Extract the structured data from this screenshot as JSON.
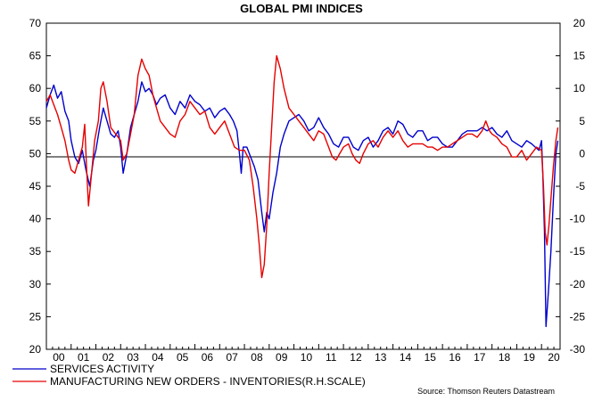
{
  "chart_data": {
    "type": "line",
    "title": "GLOBAL PMI INDICES",
    "source": "Source: Thomson Reuters Datastream",
    "left_axis": {
      "ylim": [
        20,
        70
      ],
      "ticks": [
        "70",
        "65",
        "60",
        "55",
        "50",
        "45",
        "40",
        "35",
        "30",
        "25",
        "20"
      ]
    },
    "right_axis": {
      "ylim": [
        -30,
        20
      ],
      "ticks": [
        "20",
        "15",
        "10",
        "5",
        "0",
        "-5",
        "-10",
        "-15",
        "-20",
        "-25",
        "-30"
      ]
    },
    "x_axis": {
      "year_labels": [
        "00",
        "01",
        "02",
        "03",
        "04",
        "05",
        "06",
        "07",
        "08",
        "09",
        "10",
        "11",
        "12",
        "13",
        "14",
        "15",
        "16",
        "17",
        "18",
        "19",
        "20"
      ],
      "start_year": 2000,
      "end_year": 2020.75
    },
    "reference_line_left": 49.5,
    "series": [
      {
        "name": "SERVICES ACTIVITY",
        "axis": "left",
        "color": "#0000cc",
        "points": [
          [
            2000.0,
            57.0
          ],
          [
            2000.15,
            59.0
          ],
          [
            2000.3,
            60.5
          ],
          [
            2000.45,
            58.5
          ],
          [
            2000.6,
            59.5
          ],
          [
            2000.75,
            56.5
          ],
          [
            2000.9,
            55.0
          ],
          [
            2001.0,
            52.0
          ],
          [
            2001.15,
            49.5
          ],
          [
            2001.3,
            48.5
          ],
          [
            2001.45,
            50.5
          ],
          [
            2001.6,
            47.5
          ],
          [
            2001.75,
            45.0
          ],
          [
            2001.9,
            49.0
          ],
          [
            2002.0,
            50.5
          ],
          [
            2002.15,
            54.0
          ],
          [
            2002.3,
            57.0
          ],
          [
            2002.45,
            55.0
          ],
          [
            2002.6,
            53.0
          ],
          [
            2002.75,
            52.5
          ],
          [
            2002.9,
            53.5
          ],
          [
            2003.0,
            51.0
          ],
          [
            2003.1,
            47.0
          ],
          [
            2003.25,
            50.0
          ],
          [
            2003.4,
            54.0
          ],
          [
            2003.55,
            56.0
          ],
          [
            2003.7,
            58.0
          ],
          [
            2003.85,
            61.0
          ],
          [
            2004.0,
            59.5
          ],
          [
            2004.15,
            60.0
          ],
          [
            2004.3,
            59.0
          ],
          [
            2004.45,
            57.5
          ],
          [
            2004.6,
            58.5
          ],
          [
            2004.8,
            59.0
          ],
          [
            2005.0,
            57.0
          ],
          [
            2005.2,
            56.0
          ],
          [
            2005.4,
            58.0
          ],
          [
            2005.6,
            57.0
          ],
          [
            2005.8,
            59.0
          ],
          [
            2006.0,
            58.0
          ],
          [
            2006.2,
            57.5
          ],
          [
            2006.4,
            56.5
          ],
          [
            2006.6,
            57.0
          ],
          [
            2006.8,
            55.5
          ],
          [
            2007.0,
            56.5
          ],
          [
            2007.2,
            57.0
          ],
          [
            2007.4,
            56.0
          ],
          [
            2007.55,
            55.0
          ],
          [
            2007.7,
            53.5
          ],
          [
            2007.8,
            50.0
          ],
          [
            2007.87,
            47.0
          ],
          [
            2007.95,
            51.0
          ],
          [
            2008.1,
            51.0
          ],
          [
            2008.25,
            49.5
          ],
          [
            2008.4,
            48.0
          ],
          [
            2008.55,
            46.0
          ],
          [
            2008.7,
            41.0
          ],
          [
            2008.8,
            38.0
          ],
          [
            2008.9,
            41.0
          ],
          [
            2009.0,
            40.0
          ],
          [
            2009.15,
            44.0
          ],
          [
            2009.3,
            47.0
          ],
          [
            2009.45,
            51.0
          ],
          [
            2009.6,
            53.0
          ],
          [
            2009.8,
            55.0
          ],
          [
            2010.0,
            55.5
          ],
          [
            2010.2,
            56.0
          ],
          [
            2010.4,
            55.0
          ],
          [
            2010.6,
            53.5
          ],
          [
            2010.8,
            54.0
          ],
          [
            2011.0,
            55.5
          ],
          [
            2011.2,
            54.0
          ],
          [
            2011.4,
            53.0
          ],
          [
            2011.6,
            51.5
          ],
          [
            2011.8,
            51.0
          ],
          [
            2012.0,
            52.5
          ],
          [
            2012.2,
            52.5
          ],
          [
            2012.4,
            51.0
          ],
          [
            2012.6,
            50.5
          ],
          [
            2012.8,
            52.0
          ],
          [
            2013.0,
            52.5
          ],
          [
            2013.2,
            51.0
          ],
          [
            2013.4,
            52.0
          ],
          [
            2013.6,
            53.5
          ],
          [
            2013.8,
            54.0
          ],
          [
            2014.0,
            53.0
          ],
          [
            2014.2,
            55.0
          ],
          [
            2014.4,
            54.5
          ],
          [
            2014.6,
            53.0
          ],
          [
            2014.8,
            52.5
          ],
          [
            2015.0,
            53.5
          ],
          [
            2015.2,
            53.5
          ],
          [
            2015.4,
            52.0
          ],
          [
            2015.6,
            52.5
          ],
          [
            2015.8,
            52.5
          ],
          [
            2016.0,
            51.5
          ],
          [
            2016.2,
            51.0
          ],
          [
            2016.4,
            51.0
          ],
          [
            2016.6,
            52.0
          ],
          [
            2016.8,
            53.0
          ],
          [
            2017.0,
            53.5
          ],
          [
            2017.2,
            53.5
          ],
          [
            2017.4,
            53.5
          ],
          [
            2017.6,
            54.0
          ],
          [
            2017.8,
            53.5
          ],
          [
            2018.0,
            54.0
          ],
          [
            2018.2,
            53.0
          ],
          [
            2018.4,
            52.5
          ],
          [
            2018.6,
            53.5
          ],
          [
            2018.8,
            52.0
          ],
          [
            2019.0,
            51.5
          ],
          [
            2019.2,
            51.0
          ],
          [
            2019.4,
            52.0
          ],
          [
            2019.6,
            51.5
          ],
          [
            2019.75,
            51.0
          ],
          [
            2019.9,
            50.5
          ],
          [
            2020.0,
            52.0
          ],
          [
            2020.05,
            47.0
          ],
          [
            2020.12,
            38.0
          ],
          [
            2020.18,
            23.5
          ],
          [
            2020.28,
            29.0
          ],
          [
            2020.38,
            35.0
          ],
          [
            2020.48,
            43.0
          ],
          [
            2020.58,
            50.0
          ],
          [
            2020.66,
            52.0
          ]
        ]
      },
      {
        "name": "MANUFACTURING NEW ORDERS - INVENTORIES(R.H.SCALE)",
        "axis": "right",
        "color": "#e60000",
        "points": [
          [
            2000.0,
            8.0
          ],
          [
            2000.15,
            9.0
          ],
          [
            2000.3,
            7.5
          ],
          [
            2000.45,
            6.0
          ],
          [
            2000.6,
            4.0
          ],
          [
            2000.75,
            2.0
          ],
          [
            2000.9,
            -1.0
          ],
          [
            2001.0,
            -2.5
          ],
          [
            2001.15,
            -3.0
          ],
          [
            2001.3,
            -1.0
          ],
          [
            2001.45,
            1.0
          ],
          [
            2001.55,
            4.5
          ],
          [
            2001.62,
            -2.0
          ],
          [
            2001.7,
            -8.0
          ],
          [
            2001.8,
            -4.0
          ],
          [
            2001.95,
            2.0
          ],
          [
            2002.1,
            5.0
          ],
          [
            2002.2,
            10.0
          ],
          [
            2002.3,
            11.0
          ],
          [
            2002.45,
            8.0
          ],
          [
            2002.6,
            4.0
          ],
          [
            2002.8,
            3.0
          ],
          [
            2003.0,
            2.0
          ],
          [
            2003.1,
            -1.0
          ],
          [
            2003.25,
            0.0
          ],
          [
            2003.4,
            3.0
          ],
          [
            2003.55,
            6.0
          ],
          [
            2003.7,
            12.0
          ],
          [
            2003.85,
            14.5
          ],
          [
            2004.0,
            13.0
          ],
          [
            2004.15,
            12.0
          ],
          [
            2004.3,
            9.0
          ],
          [
            2004.45,
            7.0
          ],
          [
            2004.6,
            5.0
          ],
          [
            2004.8,
            4.0
          ],
          [
            2005.0,
            3.0
          ],
          [
            2005.2,
            2.5
          ],
          [
            2005.4,
            5.0
          ],
          [
            2005.6,
            6.0
          ],
          [
            2005.8,
            8.0
          ],
          [
            2006.0,
            7.0
          ],
          [
            2006.2,
            6.0
          ],
          [
            2006.4,
            6.5
          ],
          [
            2006.6,
            4.0
          ],
          [
            2006.8,
            3.0
          ],
          [
            2007.0,
            4.0
          ],
          [
            2007.2,
            5.0
          ],
          [
            2007.4,
            3.0
          ],
          [
            2007.6,
            1.0
          ],
          [
            2007.8,
            0.5
          ],
          [
            2008.0,
            0.5
          ],
          [
            2008.2,
            -1.0
          ],
          [
            2008.35,
            -5.0
          ],
          [
            2008.5,
            -10.0
          ],
          [
            2008.6,
            -14.0
          ],
          [
            2008.7,
            -19.0
          ],
          [
            2008.8,
            -17.0
          ],
          [
            2008.9,
            -11.0
          ],
          [
            2009.0,
            -3.0
          ],
          [
            2009.1,
            4.0
          ],
          [
            2009.2,
            11.0
          ],
          [
            2009.3,
            15.0
          ],
          [
            2009.45,
            13.0
          ],
          [
            2009.6,
            10.0
          ],
          [
            2009.8,
            7.0
          ],
          [
            2010.0,
            6.0
          ],
          [
            2010.2,
            5.0
          ],
          [
            2010.4,
            4.0
          ],
          [
            2010.6,
            3.0
          ],
          [
            2010.8,
            2.0
          ],
          [
            2011.0,
            3.5
          ],
          [
            2011.2,
            3.0
          ],
          [
            2011.4,
            1.0
          ],
          [
            2011.55,
            -0.5
          ],
          [
            2011.7,
            -1.0
          ],
          [
            2011.85,
            0.0
          ],
          [
            2012.0,
            1.0
          ],
          [
            2012.2,
            1.5
          ],
          [
            2012.35,
            0.0
          ],
          [
            2012.5,
            -1.0
          ],
          [
            2012.65,
            -1.5
          ],
          [
            2012.8,
            0.0
          ],
          [
            2013.0,
            1.5
          ],
          [
            2013.2,
            2.0
          ],
          [
            2013.4,
            1.0
          ],
          [
            2013.6,
            2.5
          ],
          [
            2013.8,
            3.5
          ],
          [
            2014.0,
            2.5
          ],
          [
            2014.2,
            3.5
          ],
          [
            2014.4,
            2.0
          ],
          [
            2014.6,
            1.0
          ],
          [
            2014.8,
            1.5
          ],
          [
            2015.0,
            1.5
          ],
          [
            2015.2,
            1.5
          ],
          [
            2015.4,
            1.0
          ],
          [
            2015.6,
            1.0
          ],
          [
            2015.8,
            0.5
          ],
          [
            2016.0,
            1.0
          ],
          [
            2016.2,
            1.0
          ],
          [
            2016.4,
            1.5
          ],
          [
            2016.6,
            2.0
          ],
          [
            2016.8,
            2.5
          ],
          [
            2017.0,
            3.0
          ],
          [
            2017.2,
            3.0
          ],
          [
            2017.4,
            2.5
          ],
          [
            2017.6,
            3.5
          ],
          [
            2017.75,
            5.0
          ],
          [
            2017.9,
            3.5
          ],
          [
            2018.0,
            3.0
          ],
          [
            2018.2,
            2.5
          ],
          [
            2018.4,
            1.5
          ],
          [
            2018.6,
            1.0
          ],
          [
            2018.8,
            -0.5
          ],
          [
            2019.0,
            -0.5
          ],
          [
            2019.2,
            0.5
          ],
          [
            2019.4,
            -1.0
          ],
          [
            2019.6,
            0.0
          ],
          [
            2019.8,
            1.0
          ],
          [
            2020.0,
            0.5
          ],
          [
            2020.08,
            -5.0
          ],
          [
            2020.15,
            -12.0
          ],
          [
            2020.22,
            -14.0
          ],
          [
            2020.3,
            -11.0
          ],
          [
            2020.38,
            -7.0
          ],
          [
            2020.48,
            -2.0
          ],
          [
            2020.58,
            2.0
          ],
          [
            2020.66,
            4.0
          ]
        ]
      }
    ]
  }
}
